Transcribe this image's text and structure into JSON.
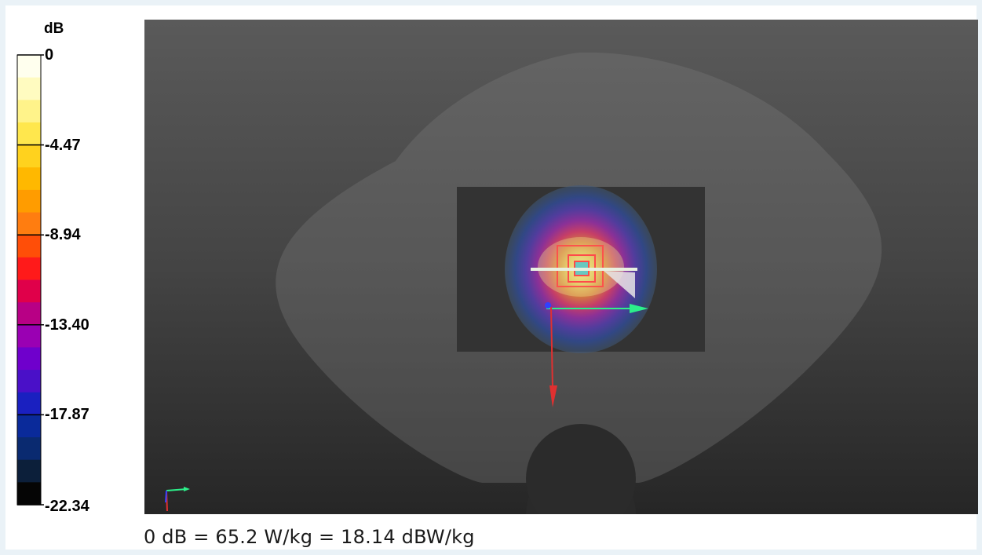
{
  "color_scale": {
    "unit": "dB",
    "ticks": [
      "0",
      "-4.47",
      "-8.94",
      "-13.40",
      "-17.87",
      "-22.34"
    ],
    "colors": [
      "#ffffee",
      "#fffbc0",
      "#fff38a",
      "#ffe74d",
      "#ffd21e",
      "#ffb800",
      "#ff9c00",
      "#ff7d10",
      "#ff4e08",
      "#ff1a1a",
      "#e0004a",
      "#b80085",
      "#9a00b3",
      "#6f00cc",
      "#4a10c8",
      "#1a20c0",
      "#0a2a9a",
      "#0a2a70",
      "#0c1f3a",
      "#050505"
    ]
  },
  "viewport": {
    "background_top": "#5a5a5a",
    "background_bottom": "#262626",
    "axis_colors": {
      "x": "#2cf08a",
      "y": "#e03030",
      "z": "#3040ff"
    }
  },
  "caption": "0 dB = 65.2 W/kg = 18.14 dBW/kg"
}
